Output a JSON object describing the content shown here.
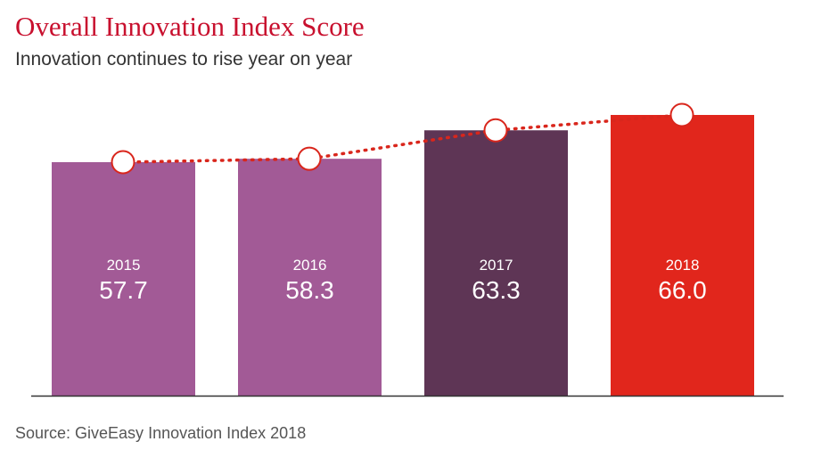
{
  "title": "Overall Innovation Index Score",
  "subtitle": "Innovation continues to rise year on year",
  "source": "Source: GiveEasy Innovation Index 2018",
  "colors": {
    "title": "#c8102e",
    "trend_line": "#d9261c",
    "axis": "#333333"
  },
  "chart_data": {
    "type": "bar",
    "categories": [
      "2015",
      "2016",
      "2017",
      "2018"
    ],
    "values": [
      57.7,
      58.3,
      63.3,
      66.0
    ],
    "value_labels": [
      "57.7",
      "58.3",
      "63.3",
      "66.0"
    ],
    "bar_colors": [
      "#a25a96",
      "#a25a96",
      "#5e3555",
      "#e1261c"
    ],
    "overlay": "dotted trend line with circle markers at each value",
    "xlabel": "",
    "ylabel": "",
    "grid": false,
    "legend": "none"
  }
}
